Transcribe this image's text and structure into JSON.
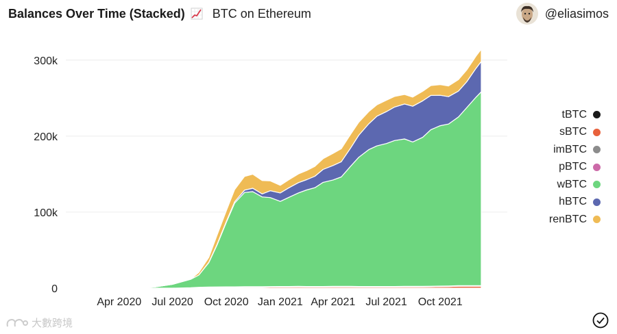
{
  "header": {
    "title": "Balances Over Time (Stacked)",
    "emoji_icon": "chart-increasing-icon",
    "subtitle": "BTC on Ethereum"
  },
  "user": {
    "handle": "@eliasimos",
    "avatar_icon": "avatar-icon"
  },
  "watermark": {
    "text": "大數跨境"
  },
  "status": {
    "icon": "checkmark-circle-icon"
  },
  "colors": {
    "tBTC": "#1a1a1a",
    "sBTC": "#e8613c",
    "imBTC": "#8c8c8c",
    "pBTC": "#cc6aa8",
    "wBTC": "#6dd67f",
    "hBTC": "#5c68b0",
    "renBTC": "#efbb55",
    "grid": "#ececec",
    "axis_text": "#222222"
  },
  "chart_data": {
    "type": "area",
    "stacked": true,
    "title": "Balances Over Time (Stacked)",
    "subtitle": "BTC on Ethereum",
    "xlabel": "",
    "ylabel": "",
    "x_tick_labels": [
      "Apr 2020",
      "Jul 2020",
      "Oct 2020",
      "Jan 2021",
      "Apr 2021",
      "Jul 2021",
      "Oct 2021"
    ],
    "y_tick_labels": [
      "0",
      "100k",
      "200k",
      "300k"
    ],
    "y_tick_values": [
      0,
      100000,
      200000,
      300000
    ],
    "ylim": [
      0,
      325000
    ],
    "x_domain": [
      "2020-01-01",
      "2021-12-31"
    ],
    "grid": true,
    "legend_position": "right",
    "legend_order": [
      "tBTC",
      "sBTC",
      "imBTC",
      "pBTC",
      "wBTC",
      "hBTC",
      "renBTC"
    ],
    "x": [
      "2020-02-01",
      "2020-03-01",
      "2020-04-01",
      "2020-05-01",
      "2020-06-01",
      "2020-07-01",
      "2020-08-01",
      "2020-08-15",
      "2020-09-01",
      "2020-09-15",
      "2020-10-01",
      "2020-10-15",
      "2020-11-01",
      "2020-11-15",
      "2020-12-01",
      "2020-12-15",
      "2021-01-01",
      "2021-01-15",
      "2021-02-01",
      "2021-02-15",
      "2021-03-01",
      "2021-03-15",
      "2021-04-01",
      "2021-04-15",
      "2021-05-01",
      "2021-05-15",
      "2021-06-01",
      "2021-06-15",
      "2021-07-01",
      "2021-07-15",
      "2021-08-01",
      "2021-08-15",
      "2021-09-01",
      "2021-09-15",
      "2021-10-01",
      "2021-10-15",
      "2021-11-01",
      "2021-11-15",
      "2021-12-01",
      "2021-12-10"
    ],
    "series": [
      {
        "name": "tBTC",
        "values": [
          0,
          0,
          0,
          0,
          0,
          0,
          0,
          0,
          0,
          0,
          0,
          0,
          0,
          0,
          0,
          0,
          0,
          0,
          0,
          0,
          0,
          0,
          0,
          0,
          0,
          0,
          0,
          0,
          0,
          0,
          0,
          0,
          0,
          0,
          0,
          0,
          0,
          0,
          0,
          0
        ]
      },
      {
        "name": "sBTC",
        "values": [
          0,
          0,
          0,
          0,
          0,
          0,
          300,
          600,
          800,
          900,
          1000,
          1000,
          1200,
          1200,
          1300,
          1400,
          1500,
          1500,
          1600,
          1500,
          1500,
          1500,
          1600,
          1600,
          1600,
          1500,
          1500,
          1500,
          1500,
          1500,
          1600,
          1600,
          1700,
          1800,
          2000,
          2200,
          2500,
          2600,
          2600,
          2600
        ]
      },
      {
        "name": "imBTC",
        "values": [
          0,
          0,
          0,
          0,
          0,
          0,
          100,
          200,
          200,
          200,
          200,
          200,
          200,
          200,
          200,
          200,
          200,
          200,
          200,
          200,
          200,
          200,
          200,
          200,
          200,
          200,
          200,
          200,
          200,
          200,
          200,
          200,
          200,
          200,
          200,
          200,
          200,
          200,
          200,
          200
        ]
      },
      {
        "name": "pBTC",
        "values": [
          0,
          0,
          0,
          0,
          0,
          0,
          200,
          400,
          500,
          500,
          500,
          500,
          500,
          500,
          500,
          500,
          500,
          500,
          500,
          500,
          500,
          500,
          500,
          500,
          500,
          500,
          500,
          500,
          500,
          500,
          500,
          500,
          500,
          500,
          500,
          500,
          500,
          500,
          500,
          500
        ]
      },
      {
        "name": "wBTC",
        "values": [
          0,
          0,
          0,
          200,
          1500,
          5000,
          11000,
          16000,
          32000,
          55000,
          85000,
          110000,
          124000,
          125000,
          118000,
          117000,
          112000,
          117000,
          123000,
          127000,
          130000,
          137000,
          140000,
          144000,
          158000,
          170000,
          180000,
          185000,
          188000,
          192000,
          194000,
          190000,
          196000,
          206000,
          211000,
          213000,
          222000,
          234000,
          248000,
          255000
        ]
      },
      {
        "name": "hBTC",
        "values": [
          0,
          0,
          0,
          0,
          0,
          0,
          0,
          0,
          500,
          800,
          1200,
          1800,
          3000,
          4500,
          4000,
          9000,
          11000,
          12500,
          13500,
          13500,
          15000,
          17000,
          19000,
          20000,
          24000,
          29000,
          34000,
          39000,
          42000,
          44000,
          46000,
          47000,
          48000,
          45000,
          40000,
          36000,
          34000,
          34000,
          38000,
          40000
        ]
      },
      {
        "name": "renBTC",
        "values": [
          0,
          0,
          0,
          0,
          0,
          0,
          100,
          3500,
          6500,
          12000,
          14000,
          16000,
          18000,
          18500,
          17500,
          13000,
          10000,
          10500,
          11500,
          12000,
          13000,
          14000,
          16000,
          17000,
          18000,
          17000,
          16000,
          15000,
          15000,
          14000,
          12500,
          12000,
          12500,
          13000,
          14000,
          14000,
          15000,
          15500,
          16000,
          16000
        ]
      }
    ]
  }
}
